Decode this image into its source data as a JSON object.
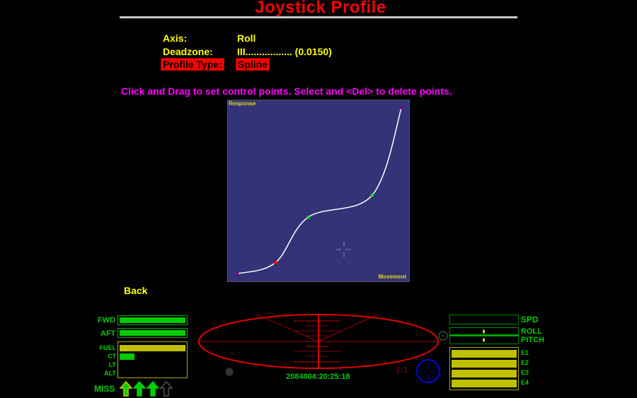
{
  "header": {
    "title": "Joystick Profile"
  },
  "settings": {
    "axis_label": "Axis:",
    "axis_value": "Roll",
    "deadzone_label": "Deadzone:",
    "deadzone_value": "III................. (0.0150)",
    "profile_type_label": "Profile Type:",
    "profile_type_value": "Spline"
  },
  "hint": "Click and Drag to set control points. Select and <Del> to delete points.",
  "chart_data": {
    "type": "line",
    "xlabel": "Movement",
    "ylabel": "Response",
    "xlim": [
      0,
      1
    ],
    "ylim": [
      0,
      1
    ],
    "points": [
      {
        "x": 0.05,
        "y": 0.05,
        "color": "#800080"
      },
      {
        "x": 0.26,
        "y": 0.11,
        "color": "#ff0000"
      },
      {
        "x": 0.44,
        "y": 0.36,
        "color": "#00ff00"
      },
      {
        "x": 0.79,
        "y": 0.48,
        "color": "#00ff00"
      },
      {
        "x": 0.95,
        "y": 0.96,
        "color": "#800080"
      }
    ],
    "line_color": "#ffffff",
    "background": "#333377"
  },
  "back_label": "Back",
  "hud": {
    "fwd": "FWD",
    "aft": "AFT",
    "fuel": "FUEL",
    "ct": "CT",
    "lt": "LT",
    "alt": "ALT",
    "miss": "MISS",
    "fwd_level": 1.0,
    "aft_level": 1.0,
    "fuel_level": 1.0,
    "ct_level": 0.23,
    "lt_level": 0,
    "alt_level": 0,
    "missiles_loaded": 3,
    "missiles_total": 4,
    "timestamp": "2084004:20:25:18",
    "ratio": "1:1",
    "spd": "SPD",
    "roll": "ROLL",
    "pitch": "PITCH",
    "roll_level": 0.5,
    "pitch_level": 0.5,
    "engines": [
      {
        "label": "E1",
        "level": 1.0
      },
      {
        "label": "E2",
        "level": 1.0
      },
      {
        "label": "E3",
        "level": 1.0
      },
      {
        "label": "E4",
        "level": 1.0
      }
    ]
  }
}
